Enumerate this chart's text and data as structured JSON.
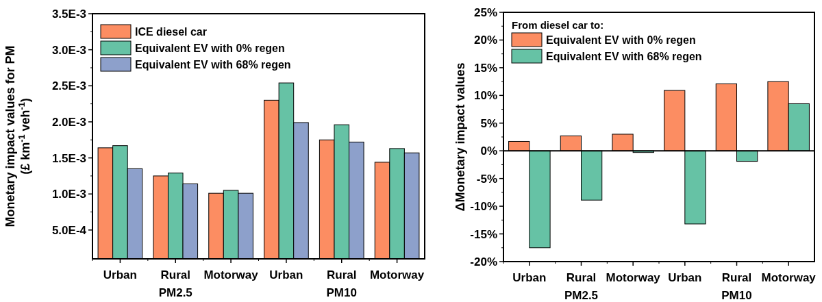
{
  "chart_data": [
    {
      "type": "bar",
      "ylabel": "Monetary impact values for PM\n(£ km$^{-1}$ veh$^{-1}$)",
      "categories": [
        "Urban",
        "Rural",
        "Motorway",
        "Urban",
        "Rural",
        "Motorway"
      ],
      "annotations": [
        "PM2.5",
        "PM10"
      ],
      "series": [
        {
          "name": "ICE diesel car",
          "color": "#fc8d62",
          "values": [
            0.00164,
            0.00125,
            0.00101,
            0.0023,
            0.00175,
            0.00144
          ]
        },
        {
          "name": "Equivalent EV with 0% regen",
          "color": "#66c2a5",
          "values": [
            0.00167,
            0.00129,
            0.00105,
            0.00254,
            0.00196,
            0.00163
          ]
        },
        {
          "name": "Equivalent EV with 68% regen",
          "color": "#8da0cb",
          "values": [
            0.00135,
            0.00114,
            0.00101,
            0.00199,
            0.00172,
            0.00157
          ]
        }
      ],
      "ylim": [
        0.0001,
        0.0035
      ],
      "yticks": [
        {
          "value": 0.0005,
          "label": "5.0E-4"
        },
        {
          "value": 0.001,
          "label": "1.0E-3"
        },
        {
          "value": 0.0015,
          "label": "1.5E-3"
        },
        {
          "value": 0.002,
          "label": "2.0E-3"
        },
        {
          "value": 0.0025,
          "label": "2.5E-3"
        },
        {
          "value": 0.003,
          "label": "3.0E-3"
        },
        {
          "value": 0.0035,
          "label": "3.5E-3"
        }
      ],
      "grid": false,
      "legend": "top left"
    },
    {
      "type": "bar",
      "ylabel": "ΔMonetary impact values",
      "legend_title": "From diesel car to:",
      "categories": [
        "Urban",
        "Rural",
        "Motorway",
        "Urban",
        "Rural",
        "Motorway"
      ],
      "annotations": [
        "PM2.5",
        "PM10"
      ],
      "series": [
        {
          "name": "Equivalent EV with 0% regen",
          "color": "#fc8d62",
          "values": [
            1.7,
            2.7,
            3.0,
            10.9,
            12.1,
            12.5
          ]
        },
        {
          "name": "Equivalent EV with 68% regen",
          "color": "#66c2a5",
          "values": [
            -17.5,
            -8.9,
            -0.3,
            -13.2,
            -1.9,
            8.5
          ]
        }
      ],
      "ylim": [
        -20,
        25
      ],
      "yticks": [
        {
          "value": -20,
          "label": "-20%"
        },
        {
          "value": -15,
          "label": "-15%"
        },
        {
          "value": -10,
          "label": "-10%"
        },
        {
          "value": -5,
          "label": "-5%"
        },
        {
          "value": 0,
          "label": "0%"
        },
        {
          "value": 5,
          "label": "5%"
        },
        {
          "value": 10,
          "label": "10%"
        },
        {
          "value": 15,
          "label": "15%"
        },
        {
          "value": 20,
          "label": "20%"
        },
        {
          "value": 25,
          "label": "25%"
        }
      ],
      "ref_lines": [
        {
          "axis": "y",
          "value": 0
        }
      ],
      "grid": false,
      "legend": "top left"
    }
  ]
}
